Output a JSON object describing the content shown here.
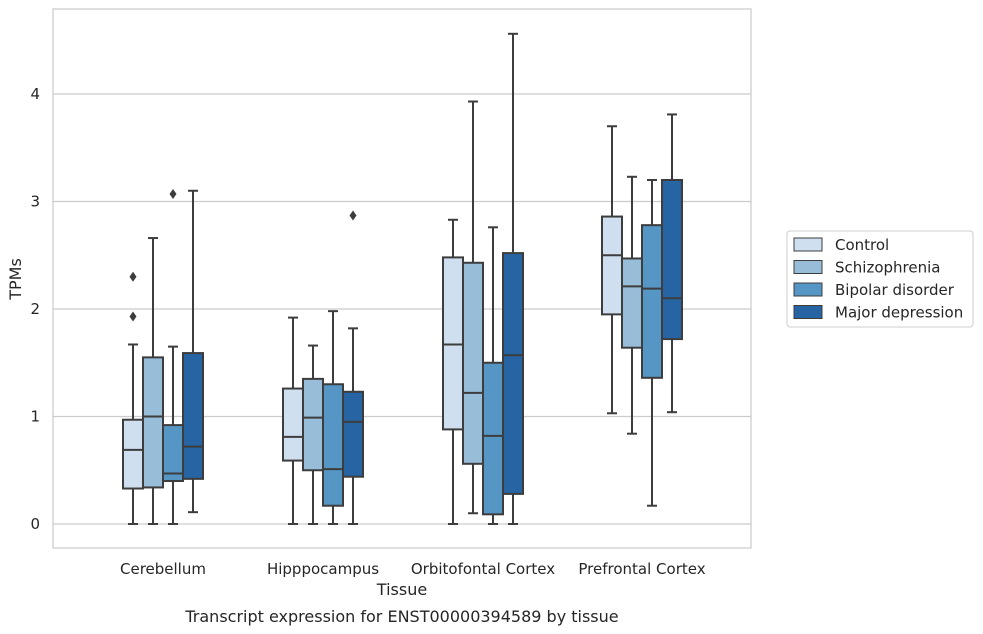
{
  "chart_data": {
    "type": "box",
    "xlabel": "Tissue",
    "ylabel": "TPMs",
    "caption": "Transcript expression for ENST00000394589 by tissue",
    "ylim": [
      -0.22,
      4.8
    ],
    "yticks": [
      0,
      1,
      2,
      3,
      4
    ],
    "grid": true,
    "legend_position": "right",
    "categories": [
      "Cerebellum",
      "Hipppocampus",
      "Orbitofontal Cortex",
      "Prefrontal Cortex"
    ],
    "series": [
      {
        "name": "Control",
        "color": "#d0dff0",
        "boxes": [
          {
            "whislo": 0.0,
            "q1": 0.33,
            "med": 0.69,
            "q3": 0.97,
            "whishi": 1.67,
            "fliers": [
              1.93,
              2.3
            ]
          },
          {
            "whislo": 0.0,
            "q1": 0.59,
            "med": 0.81,
            "q3": 1.26,
            "whishi": 1.92,
            "fliers": []
          },
          {
            "whislo": 0.0,
            "q1": 0.88,
            "med": 1.67,
            "q3": 2.48,
            "whishi": 2.83,
            "fliers": []
          },
          {
            "whislo": 1.03,
            "q1": 1.95,
            "med": 2.5,
            "q3": 2.86,
            "whishi": 3.7,
            "fliers": []
          }
        ]
      },
      {
        "name": "Schizophrenia",
        "color": "#97bdd9",
        "boxes": [
          {
            "whislo": 0.0,
            "q1": 0.34,
            "med": 1.0,
            "q3": 1.55,
            "whishi": 2.66,
            "fliers": []
          },
          {
            "whislo": 0.0,
            "q1": 0.5,
            "med": 0.99,
            "q3": 1.35,
            "whishi": 1.66,
            "fliers": []
          },
          {
            "whislo": 0.1,
            "q1": 0.56,
            "med": 1.22,
            "q3": 2.43,
            "whishi": 3.93,
            "fliers": []
          },
          {
            "whislo": 0.84,
            "q1": 1.64,
            "med": 2.21,
            "q3": 2.47,
            "whishi": 3.23,
            "fliers": []
          }
        ]
      },
      {
        "name": "Bipolar disorder",
        "color": "#5596c5",
        "boxes": [
          {
            "whislo": 0.0,
            "q1": 0.4,
            "med": 0.47,
            "q3": 0.92,
            "whishi": 1.65,
            "fliers": [
              3.07
            ]
          },
          {
            "whislo": 0.0,
            "q1": 0.17,
            "med": 0.51,
            "q3": 1.3,
            "whishi": 1.98,
            "fliers": []
          },
          {
            "whislo": 0.0,
            "q1": 0.09,
            "med": 0.82,
            "q3": 1.5,
            "whishi": 2.76,
            "fliers": []
          },
          {
            "whislo": 0.17,
            "q1": 1.36,
            "med": 2.19,
            "q3": 2.78,
            "whishi": 3.2,
            "fliers": []
          }
        ]
      },
      {
        "name": "Major depression",
        "color": "#2764a3",
        "boxes": [
          {
            "whislo": 0.11,
            "q1": 0.42,
            "med": 0.72,
            "q3": 1.59,
            "whishi": 3.1,
            "fliers": []
          },
          {
            "whislo": 0.0,
            "q1": 0.44,
            "med": 0.95,
            "q3": 1.23,
            "whishi": 1.82,
            "fliers": [
              2.87
            ]
          },
          {
            "whislo": 0.0,
            "q1": 0.28,
            "med": 1.57,
            "q3": 2.52,
            "whishi": 4.56,
            "fliers": []
          },
          {
            "whislo": 1.04,
            "q1": 1.72,
            "med": 2.1,
            "q3": 3.2,
            "whishi": 3.81,
            "fliers": []
          }
        ]
      }
    ]
  }
}
